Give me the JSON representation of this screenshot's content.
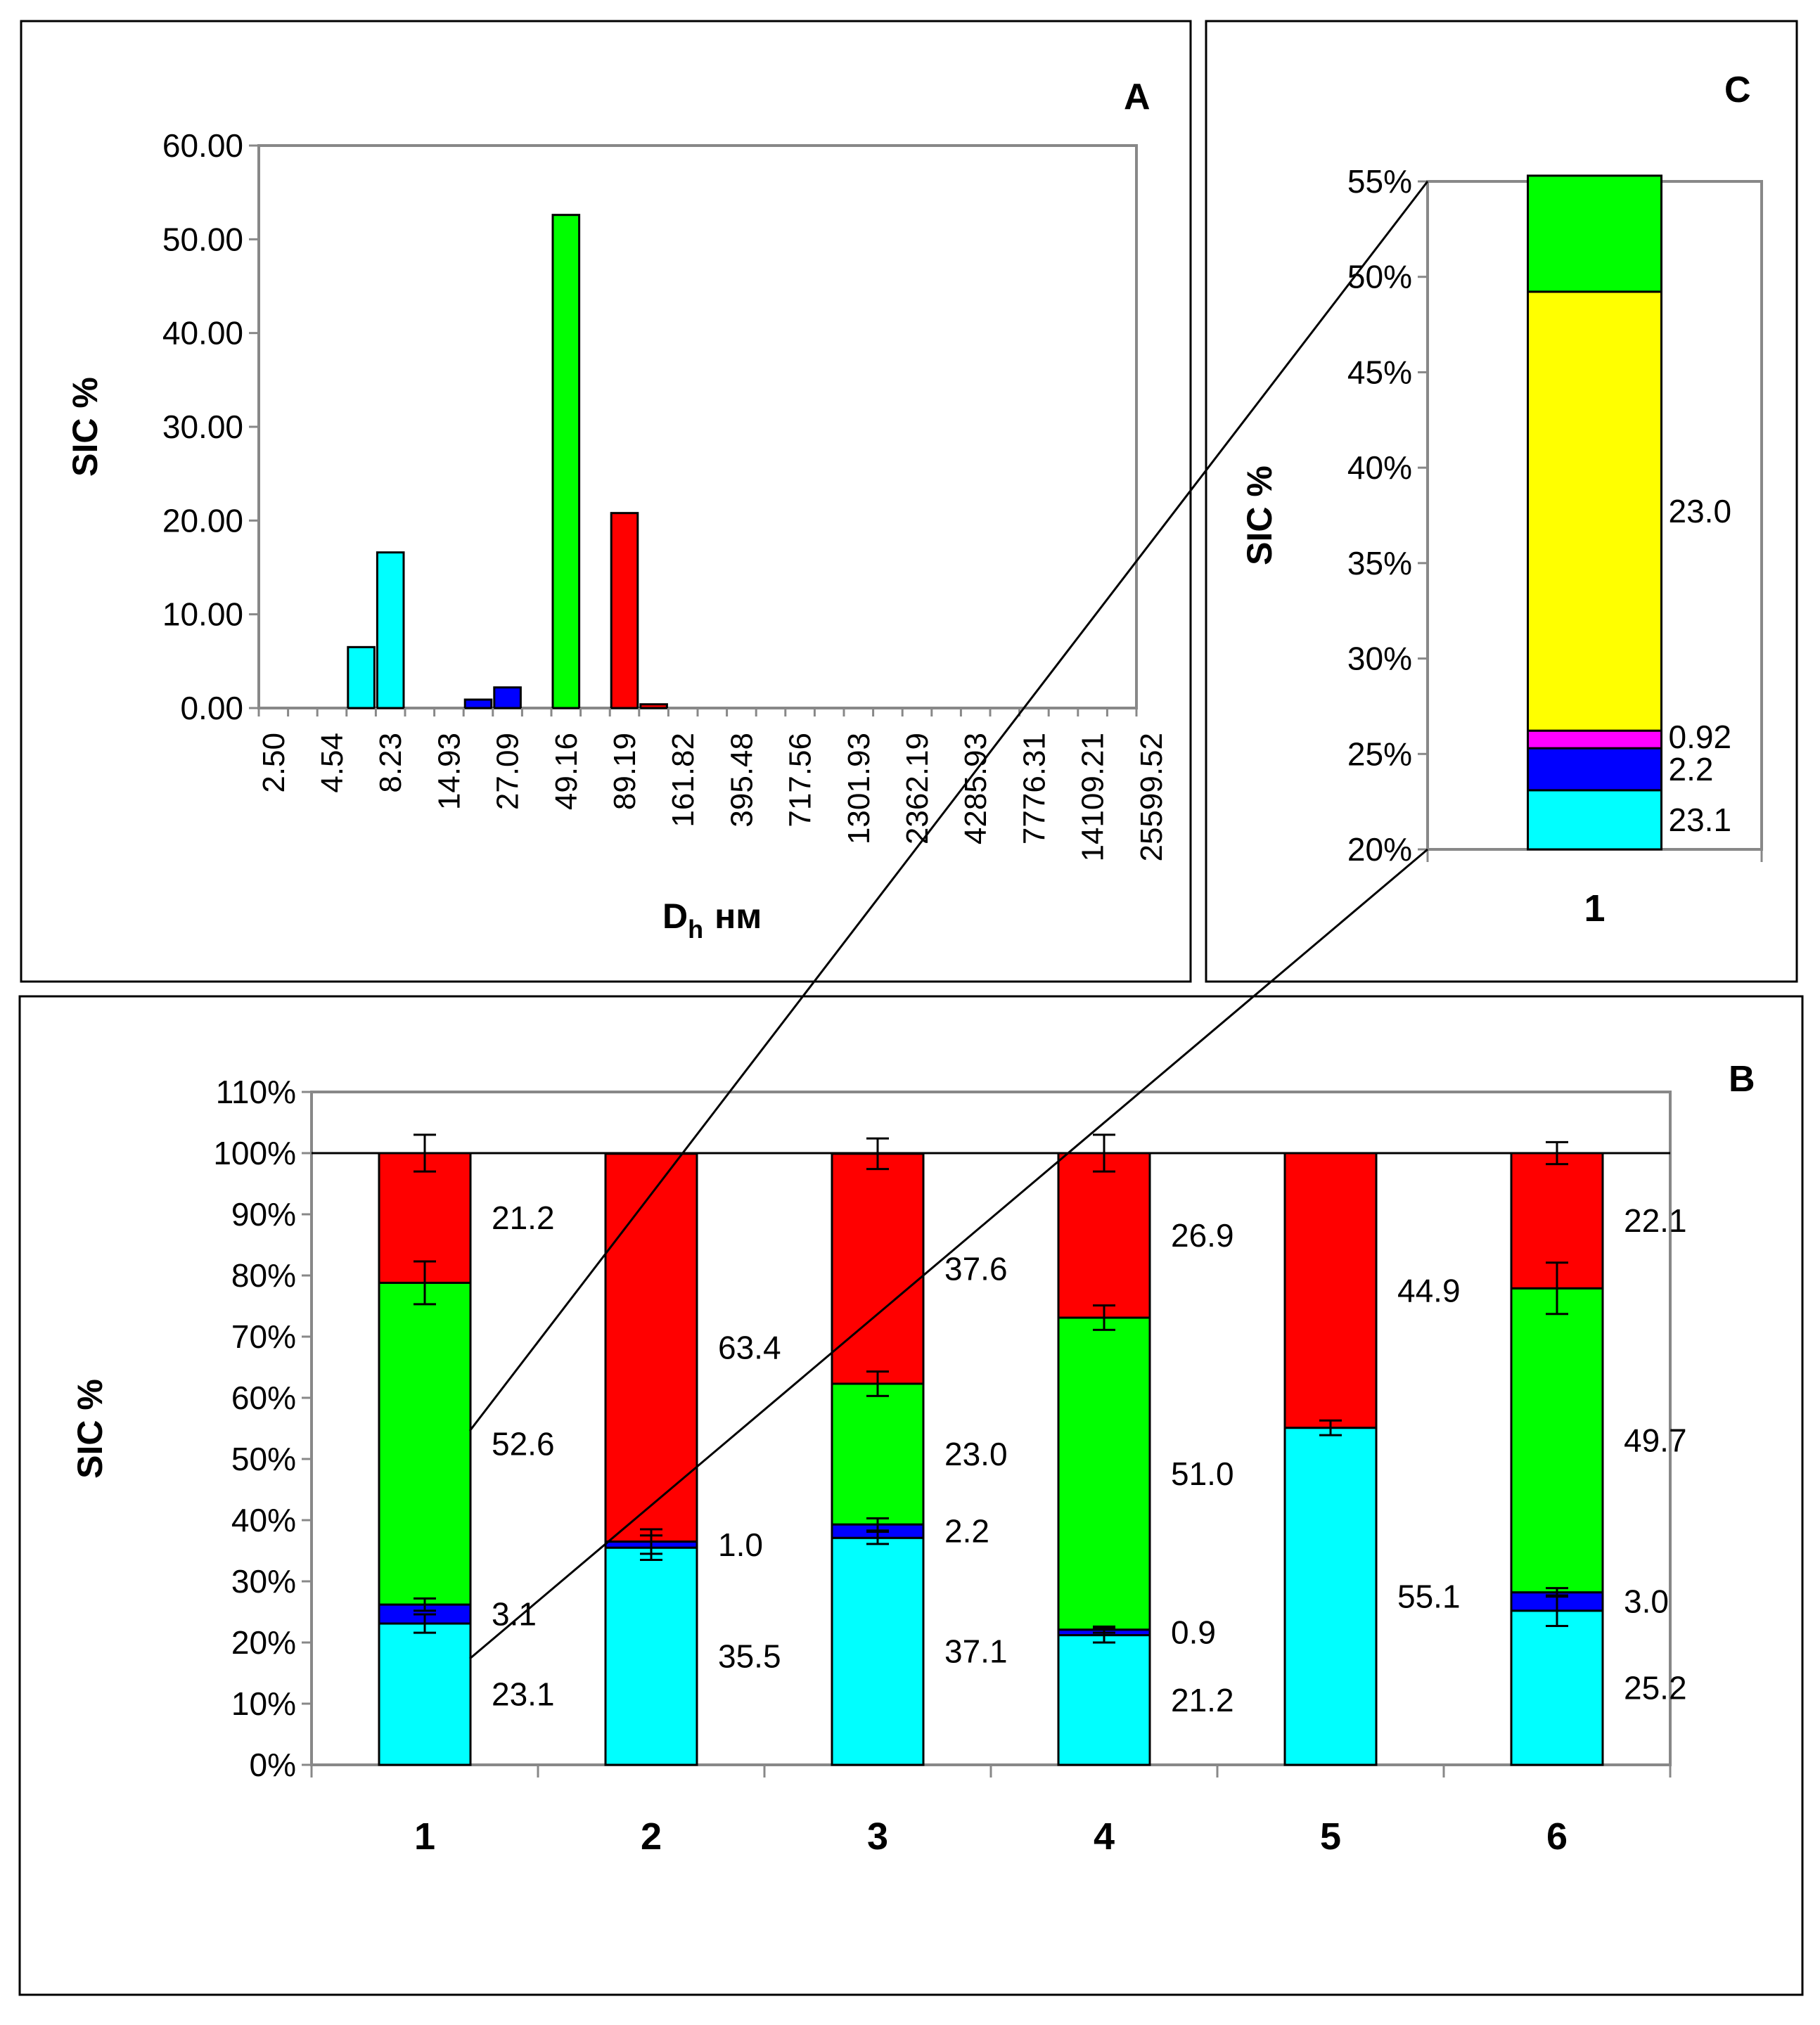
{
  "chart_data": [
    {
      "panel": "A",
      "type": "bar",
      "ylabel": "SIC %",
      "xlabel_main": "D",
      "xlabel_sub": "h",
      "xlabel_unit": "нм",
      "ylim": [
        0,
        60
      ],
      "y_ticks": [
        "0.00",
        "10.00",
        "20.00",
        "30.00",
        "40.00",
        "50.00",
        "60.00"
      ],
      "x_tick_labels": [
        "2.50",
        "4.54",
        "8.23",
        "14.93",
        "27.09",
        "49.16",
        "89.19",
        "161.82",
        "395.48",
        "717.56",
        "1301.93",
        "2362.19",
        "4285.93",
        "7776.31",
        "14109.21",
        "25599.52"
      ],
      "bars": [
        {
          "slot": 3,
          "value": 6.5,
          "color": "#00ffff"
        },
        {
          "slot": 4,
          "value": 16.6,
          "color": "#00ffff"
        },
        {
          "slot": 7,
          "value": 0.9,
          "color": "#0000ff"
        },
        {
          "slot": 8,
          "value": 2.2,
          "color": "#0000ff"
        },
        {
          "slot": 10,
          "value": 52.6,
          "color": "#00ff00"
        },
        {
          "slot": 12,
          "value": 20.8,
          "color": "#ff0000"
        },
        {
          "slot": 13,
          "value": 0.4,
          "color": "#ff0000"
        }
      ]
    },
    {
      "panel": "B",
      "type": "bar",
      "stacked": true,
      "ylabel": "SIC %",
      "ylim": [
        0,
        110
      ],
      "y_ticks": [
        "0%",
        "10%",
        "20%",
        "30%",
        "40%",
        "50%",
        "60%",
        "70%",
        "80%",
        "90%",
        "100%",
        "110%"
      ],
      "categories": [
        "1",
        "2",
        "3",
        "4",
        "5",
        "6"
      ],
      "series": [
        {
          "name": "cyan",
          "color": "#00ffff",
          "values": [
            23.1,
            35.5,
            37.1,
            21.2,
            55.1,
            25.2
          ],
          "errors": [
            1.5,
            2.0,
            1.0,
            1.2,
            1.2,
            2.5
          ]
        },
        {
          "name": "blue",
          "color": "#0000ff",
          "values": [
            3.1,
            1.0,
            2.2,
            0.9,
            0,
            3.0
          ],
          "errors": [
            1.0,
            2.0,
            1.0,
            0.5,
            0,
            0.7
          ]
        },
        {
          "name": "green",
          "color": "#00ff00",
          "values": [
            52.6,
            0,
            23.0,
            51.0,
            0,
            49.7
          ],
          "errors": [
            3.5,
            0,
            2.0,
            2.0,
            0,
            4.2
          ]
        },
        {
          "name": "red",
          "color": "#ff0000",
          "values": [
            21.2,
            63.4,
            37.6,
            26.9,
            44.9,
            22.1
          ],
          "errors": [
            3.0,
            0,
            2.5,
            3.0,
            0,
            1.8
          ]
        }
      ],
      "data_labels": [
        {
          "cat": 0,
          "series": 0,
          "text": "23.1"
        },
        {
          "cat": 0,
          "series": 1,
          "text": "3.1"
        },
        {
          "cat": 0,
          "series": 2,
          "text": "52.6"
        },
        {
          "cat": 0,
          "series": 3,
          "text": "21.2"
        },
        {
          "cat": 1,
          "series": 0,
          "text": "35.5"
        },
        {
          "cat": 1,
          "series": 1,
          "text": "1.0"
        },
        {
          "cat": 1,
          "series": 3,
          "text": "63.4"
        },
        {
          "cat": 2,
          "series": 0,
          "text": "37.1"
        },
        {
          "cat": 2,
          "series": 1,
          "text": "2.2"
        },
        {
          "cat": 2,
          "series": 2,
          "text": "23.0"
        },
        {
          "cat": 2,
          "series": 3,
          "text": "37.6"
        },
        {
          "cat": 3,
          "series": 0,
          "text": "21.2"
        },
        {
          "cat": 3,
          "series": 1,
          "text": "0.9"
        },
        {
          "cat": 3,
          "series": 2,
          "text": "51.0"
        },
        {
          "cat": 3,
          "series": 3,
          "text": "26.9"
        },
        {
          "cat": 4,
          "series": 0,
          "text": "55.1"
        },
        {
          "cat": 4,
          "series": 3,
          "text": "44.9"
        },
        {
          "cat": 5,
          "series": 0,
          "text": "25.2"
        },
        {
          "cat": 5,
          "series": 1,
          "text": "3.0"
        },
        {
          "cat": 5,
          "series": 2,
          "text": "49.7"
        },
        {
          "cat": 5,
          "series": 3,
          "text": "22.1"
        }
      ]
    },
    {
      "panel": "C",
      "type": "bar",
      "stacked": true,
      "ylabel": "SIC %",
      "ylim": [
        20,
        55
      ],
      "y_ticks": [
        "20%",
        "25%",
        "30%",
        "35%",
        "40%",
        "45%",
        "50%",
        "55%"
      ],
      "categories": [
        "1"
      ],
      "segments": [
        {
          "color": "#00ffff",
          "from": 20,
          "to": 23.1,
          "label": "23.1"
        },
        {
          "color": "#0000ff",
          "from": 23.1,
          "to": 25.3,
          "label": "2.2"
        },
        {
          "color": "#ff00ff",
          "from": 25.3,
          "to": 26.22,
          "label": "0.92"
        },
        {
          "color": "#ffff00",
          "from": 26.22,
          "to": 49.22,
          "label": "23.0"
        },
        {
          "color": "#00ff00",
          "from": 49.22,
          "to": 55.3,
          "label": ""
        }
      ]
    }
  ]
}
